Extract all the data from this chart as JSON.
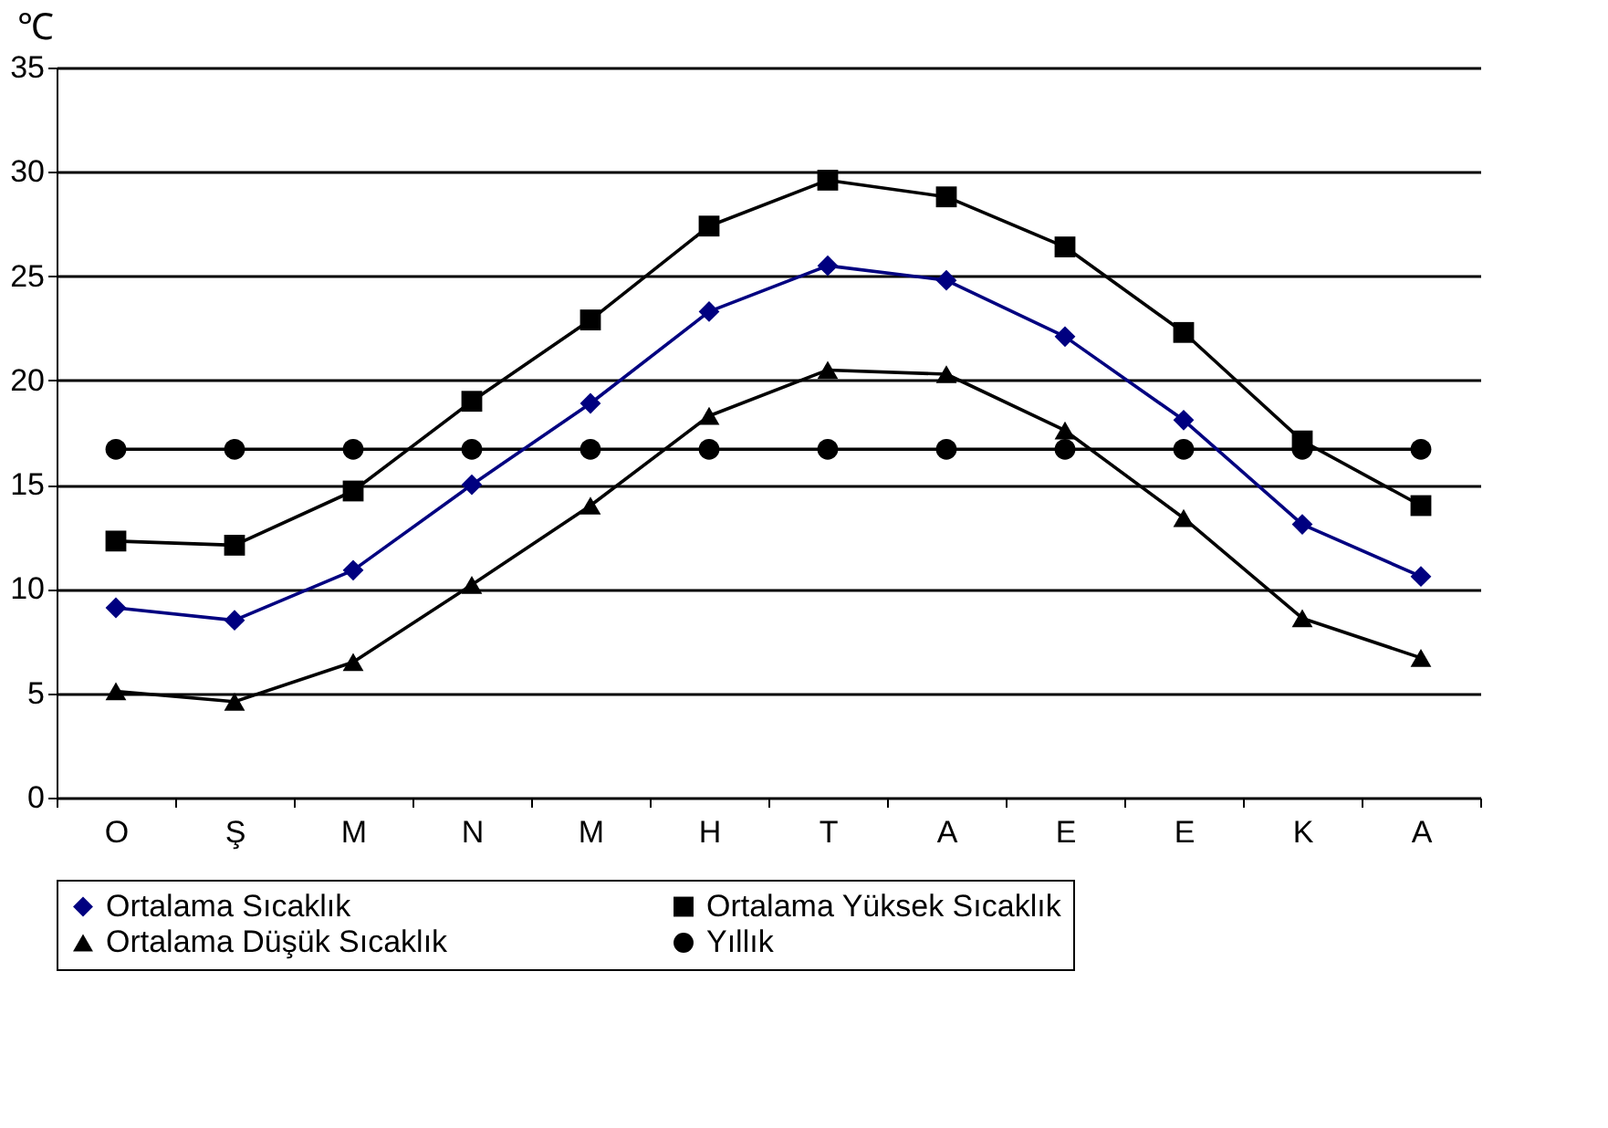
{
  "chart_data": {
    "type": "line",
    "ylabel": "℃",
    "categories": [
      "O",
      "Ş",
      "M",
      "N",
      "M",
      "H",
      "T",
      "A",
      "E",
      "E",
      "K",
      "A"
    ],
    "ylim": [
      0,
      35
    ],
    "yticks": [
      0,
      5,
      10,
      15,
      20,
      25,
      30,
      35
    ],
    "grid": "y",
    "legend": "bottom",
    "line_style": "solid",
    "series": [
      {
        "name": "Ortalama Sıcaklık",
        "color": "#000080",
        "marker": "diamond",
        "values": [
          9.1,
          8.5,
          10.9,
          15.0,
          18.9,
          23.3,
          25.5,
          24.8,
          22.1,
          18.1,
          13.1,
          10.6
        ]
      },
      {
        "name": "Ortalama Yüksek Sıcaklık",
        "color": "#000000",
        "marker": "square",
        "values": [
          12.3,
          12.1,
          14.7,
          19.0,
          22.9,
          27.4,
          29.6,
          28.8,
          26.4,
          22.3,
          17.1,
          14.0
        ]
      },
      {
        "name": "Ortalama Düşük Sıcaklık",
        "color": "#000000",
        "marker": "triangle",
        "values": [
          5.1,
          4.6,
          6.5,
          10.2,
          14.0,
          18.3,
          20.5,
          20.3,
          17.6,
          13.4,
          8.6,
          6.7
        ]
      },
      {
        "name": "Yıllık",
        "color": "#000000",
        "marker": "circle",
        "values": [
          16.7,
          16.7,
          16.7,
          16.7,
          16.7,
          16.7,
          16.7,
          16.7,
          16.7,
          16.7,
          16.7,
          16.7
        ]
      }
    ]
  }
}
